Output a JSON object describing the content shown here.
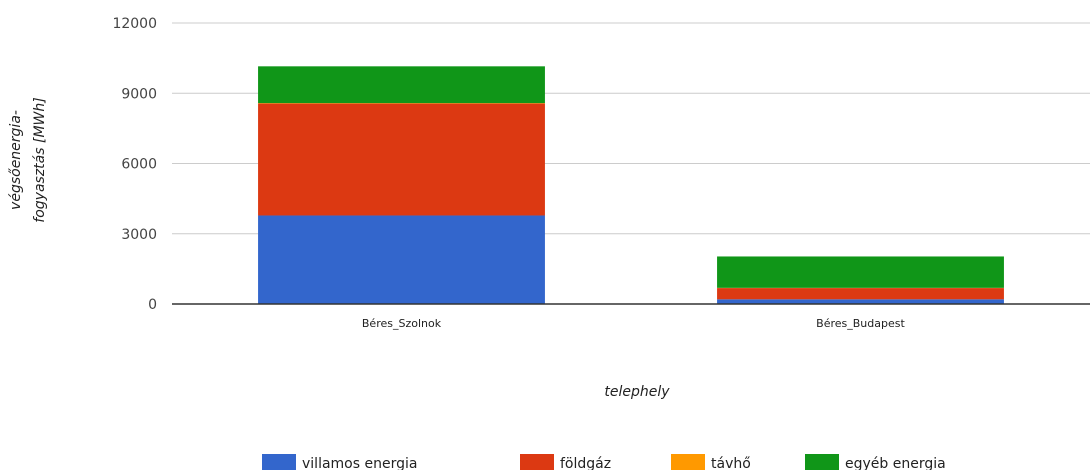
{
  "chart_data": {
    "type": "bar",
    "stacked": true,
    "categories": [
      "Béres_Szolnok",
      "Béres_Budapest"
    ],
    "series": [
      {
        "name": "villamos energia",
        "color": "#3366cc",
        "values": [
          3780,
          200
        ]
      },
      {
        "name": "földgáz",
        "color": "#dc3912",
        "values": [
          4780,
          480
        ]
      },
      {
        "name": "távhő",
        "color": "#ff9900",
        "values": [
          20,
          10
        ]
      },
      {
        "name": "egyéb energia",
        "color": "#109618",
        "values": [
          1570,
          1340
        ]
      }
    ],
    "xlabel": "telephely",
    "ylabel_lines": [
      "végsőenergia-",
      "fogyasztás [MWh]"
    ],
    "ylim": [
      0,
      12000
    ],
    "yticks": [
      0,
      3000,
      6000,
      9000,
      12000
    ],
    "grid": true,
    "legend_position": "bottom"
  }
}
